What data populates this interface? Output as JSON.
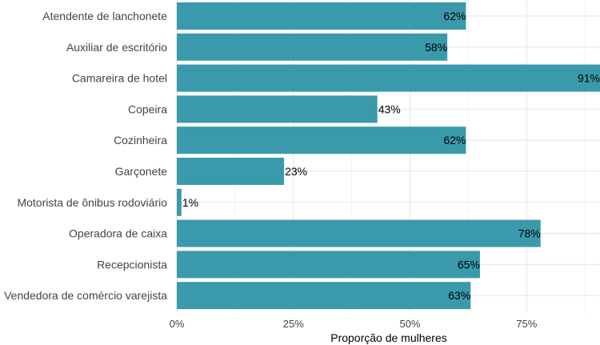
{
  "chart_data": {
    "type": "bar",
    "orientation": "horizontal",
    "categories": [
      "Atendente de lanchonete",
      "Auxiliar de escritório",
      "Camareira de hotel",
      "Copeira",
      "Cozinheira",
      "Garçonete",
      "Motorista de ônibus rodoviário",
      "Operadora de caixa",
      "Recepcionista",
      "Vendedora de comércio varejista"
    ],
    "values": [
      0.62,
      0.58,
      0.91,
      0.43,
      0.62,
      0.23,
      0.01,
      0.78,
      0.65,
      0.63
    ],
    "value_labels": [
      "62%",
      "58%",
      "91%",
      "43%",
      "62%",
      "23%",
      "1%",
      "78%",
      "65%",
      "63%"
    ],
    "xlabel": "Proporção de mulheres",
    "ylabel": "",
    "xlim": [
      0,
      0.9
    ],
    "xticks": [
      0,
      0.25,
      0.5,
      0.75
    ],
    "xtick_labels": [
      "0%",
      "25%",
      "50%",
      "75%"
    ],
    "grid": true,
    "bar_color": "#3a9aab"
  }
}
